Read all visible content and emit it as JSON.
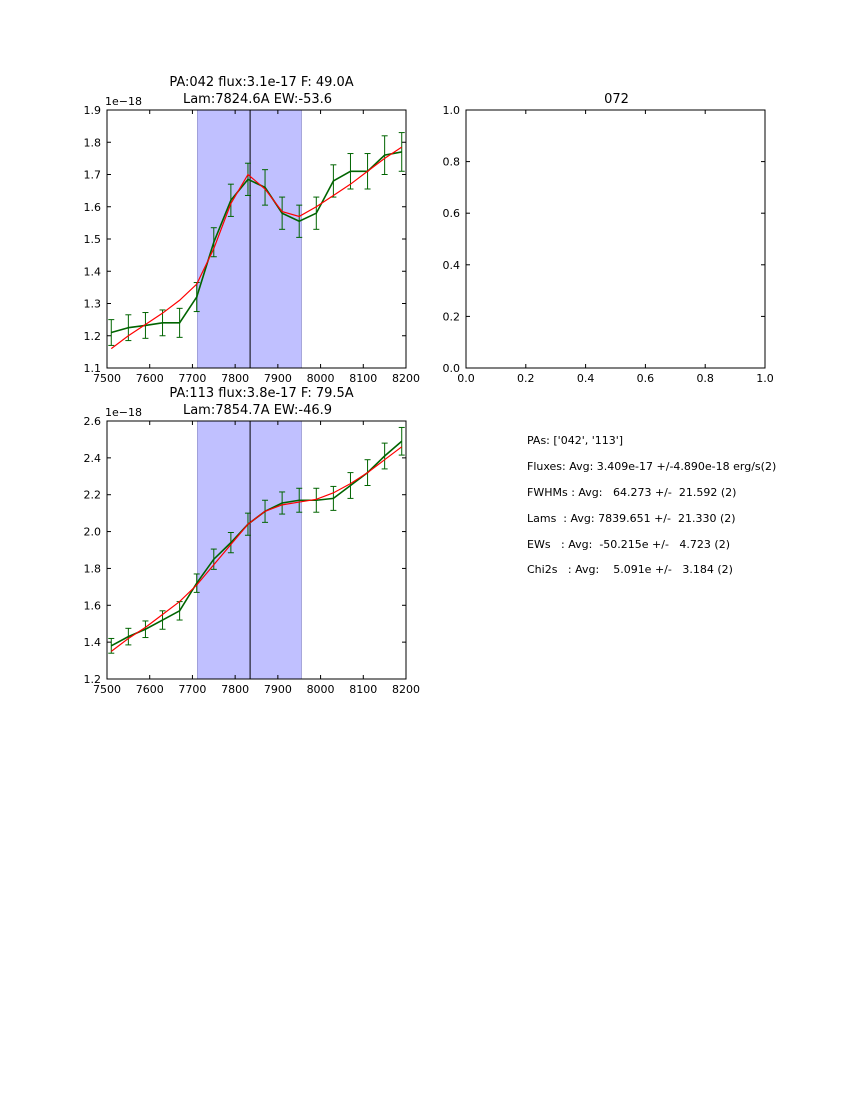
{
  "chart_data": [
    {
      "type": "line",
      "title_line1": "PA:042 flux:3.1e-17 F: 49.0A",
      "title_line2": "Lam:7824.6A EW:-53.6",
      "offset_label": "1e−18",
      "xlim": [
        7500,
        8200
      ],
      "ylim": [
        1.1,
        1.9
      ],
      "xticks": [
        "7500",
        "7600",
        "7700",
        "7800",
        "7900",
        "8000",
        "8100",
        "8200"
      ],
      "yticks": [
        "1.1",
        "1.2",
        "1.3",
        "1.4",
        "1.5",
        "1.6",
        "1.7",
        "1.8",
        "1.9"
      ],
      "band": [
        7712,
        7955
      ],
      "vline": 7835,
      "x": [
        7510,
        7550,
        7590,
        7630,
        7670,
        7710,
        7750,
        7790,
        7830,
        7870,
        7910,
        7950,
        7990,
        8030,
        8070,
        8110,
        8150,
        8190
      ],
      "series": [
        {
          "name": "data",
          "color": "#006400",
          "values": [
            1.21,
            1.225,
            1.232,
            1.24,
            1.24,
            1.32,
            1.49,
            1.62,
            1.685,
            1.66,
            1.58,
            1.555,
            1.58,
            1.68,
            1.71,
            1.71,
            1.76,
            1.77
          ],
          "errors": [
            0.04,
            0.04,
            0.04,
            0.04,
            0.045,
            0.045,
            0.045,
            0.05,
            0.05,
            0.055,
            0.05,
            0.05,
            0.05,
            0.05,
            0.055,
            0.055,
            0.06,
            0.06
          ]
        },
        {
          "name": "fit",
          "color": "#ff0000",
          "values": [
            1.16,
            1.2,
            1.235,
            1.27,
            1.31,
            1.36,
            1.47,
            1.61,
            1.7,
            1.655,
            1.585,
            1.57,
            1.6,
            1.635,
            1.67,
            1.71,
            1.75,
            1.785
          ]
        }
      ]
    },
    {
      "type": "line",
      "title_line1": "",
      "title_line2": "072",
      "offset_label": "",
      "xlim": [
        0,
        1
      ],
      "ylim": [
        0,
        1
      ],
      "xticks": [
        "0.0",
        "0.2",
        "0.4",
        "0.6",
        "0.8",
        "1.0"
      ],
      "yticks": [
        "0.0",
        "0.2",
        "0.4",
        "0.6",
        "0.8",
        "1.0"
      ],
      "series": []
    },
    {
      "type": "line",
      "title_line1": "PA:113 flux:3.8e-17 F: 79.5A",
      "title_line2": "Lam:7854.7A EW:-46.9",
      "offset_label": "1e−18",
      "xlim": [
        7500,
        8200
      ],
      "ylim": [
        1.2,
        2.6
      ],
      "xticks": [
        "7500",
        "7600",
        "7700",
        "7800",
        "7900",
        "8000",
        "8100",
        "8200"
      ],
      "yticks": [
        "1.2",
        "1.4",
        "1.6",
        "1.8",
        "2.0",
        "2.2",
        "2.4",
        "2.6"
      ],
      "band": [
        7712,
        7955
      ],
      "vline": 7835,
      "x": [
        7510,
        7550,
        7590,
        7630,
        7670,
        7710,
        7750,
        7790,
        7830,
        7870,
        7910,
        7950,
        7990,
        8030,
        8070,
        8110,
        8150,
        8190
      ],
      "series": [
        {
          "name": "data",
          "color": "#006400",
          "values": [
            1.38,
            1.43,
            1.47,
            1.52,
            1.57,
            1.72,
            1.85,
            1.94,
            2.04,
            2.11,
            2.155,
            2.17,
            2.17,
            2.18,
            2.25,
            2.32,
            2.41,
            2.49
          ],
          "errors": [
            0.04,
            0.045,
            0.045,
            0.05,
            0.05,
            0.05,
            0.055,
            0.055,
            0.06,
            0.06,
            0.06,
            0.065,
            0.065,
            0.065,
            0.07,
            0.07,
            0.07,
            0.075
          ]
        },
        {
          "name": "fit",
          "color": "#ff0000",
          "values": [
            1.35,
            1.42,
            1.48,
            1.55,
            1.62,
            1.71,
            1.82,
            1.93,
            2.04,
            2.11,
            2.145,
            2.16,
            2.175,
            2.21,
            2.26,
            2.32,
            2.39,
            2.46
          ]
        }
      ]
    }
  ],
  "summary": {
    "pas": "PAs: ['042', '113']",
    "fluxes": "Fluxes: Avg: 3.409e-17 +/-4.890e-18 erg/s(2)",
    "fwhms": "FWHMs : Avg:   64.273 +/-  21.592 (2)",
    "lams": "Lams  : Avg: 7839.651 +/-  21.330 (2)",
    "ews": "EWs   : Avg:  -50.215e +/-   4.723 (2)",
    "chi2s": "Chi2s   : Avg:    5.091e +/-   3.184 (2)"
  },
  "colors": {
    "band": "#c0c0ff",
    "data": "#006400",
    "fit": "#ff0000"
  }
}
